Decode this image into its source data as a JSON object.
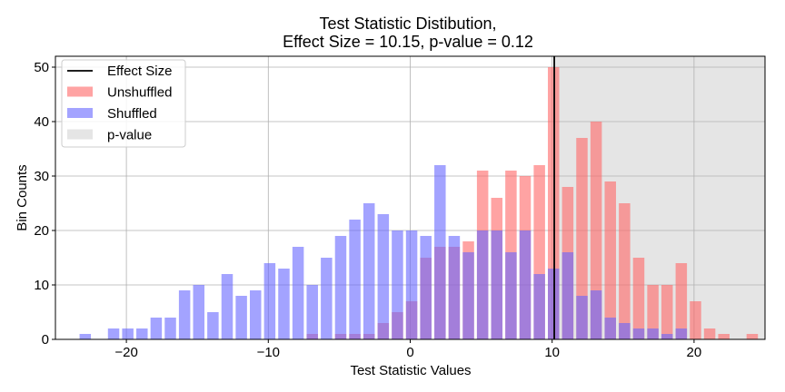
{
  "chart_data": {
    "type": "bar",
    "title_line1": "Test Statistic Distibution,",
    "title_line2": "Effect Size = 10.15, p-value = 0.12",
    "xlabel": "Test Statistic Values",
    "ylabel": "Bin Counts",
    "xlim": [
      -25,
      25
    ],
    "ylim": [
      0,
      52
    ],
    "xticks": [
      -20,
      -10,
      0,
      10,
      20
    ],
    "xtick_labels": [
      "−20",
      "−10",
      "0",
      "10",
      "20"
    ],
    "yticks": [
      0,
      10,
      20,
      30,
      40,
      50
    ],
    "ytick_labels": [
      "0",
      "10",
      "20",
      "30",
      "40",
      "50"
    ],
    "grid": true,
    "legend_position": "top-left",
    "effect_size": 10.15,
    "p_value": 0.12,
    "pvalue_region": [
      10.15,
      25
    ],
    "bin_width": 0.8,
    "colors": {
      "unshuffled": "#ff6666",
      "shuffled": "#6666ff",
      "pvalue_region": "#cccccc",
      "effect_line": "#000000",
      "grid": "#b0b0b0"
    },
    "legend": [
      {
        "label": "Effect Size",
        "kind": "line"
      },
      {
        "label": "Unshuffled",
        "kind": "unshuffled"
      },
      {
        "label": "Shuffled",
        "kind": "shuffled"
      },
      {
        "label": "p-value",
        "kind": "pvalue"
      }
    ],
    "series": [
      {
        "name": "Unshuffled",
        "x": [
          -6.9,
          -4.9,
          -3.9,
          -2.9,
          -1.9,
          -0.9,
          0.1,
          1.1,
          2.1,
          3.1,
          4.1,
          5.1,
          6.1,
          7.1,
          8.1,
          9.1,
          10.1,
          11.1,
          12.1,
          13.1,
          14.1,
          15.1,
          16.1,
          17.1,
          18.1,
          19.1,
          20.1,
          21.1,
          22.1,
          24.1
        ],
        "values": [
          1,
          1,
          1,
          1,
          3,
          5,
          7,
          15,
          17,
          17,
          18,
          31,
          26,
          31,
          30,
          32,
          50,
          28,
          37,
          40,
          29,
          25,
          15,
          10,
          10,
          14,
          7,
          2,
          1,
          1
        ]
      },
      {
        "name": "Shuffled",
        "x": [
          -22.9,
          -20.9,
          -19.9,
          -18.9,
          -17.9,
          -16.9,
          -15.9,
          -14.9,
          -13.9,
          -12.9,
          -11.9,
          -10.9,
          -9.9,
          -8.9,
          -7.9,
          -6.9,
          -5.9,
          -4.9,
          -3.9,
          -2.9,
          -1.9,
          -0.9,
          0.1,
          1.1,
          2.1,
          3.1,
          4.1,
          5.1,
          6.1,
          7.1,
          8.1,
          9.1,
          10.1,
          11.1,
          12.1,
          13.1,
          14.1,
          15.1,
          16.1,
          17.1,
          18.1,
          19.1
        ],
        "values": [
          1,
          2,
          2,
          2,
          4,
          4,
          9,
          10,
          5,
          12,
          8,
          9,
          14,
          13,
          17,
          10,
          15,
          19,
          22,
          25,
          23,
          20,
          20,
          19,
          32,
          19,
          16,
          20,
          20,
          16,
          20,
          12,
          13,
          16,
          8,
          9,
          4,
          3,
          2,
          2,
          1,
          2
        ]
      }
    ]
  }
}
